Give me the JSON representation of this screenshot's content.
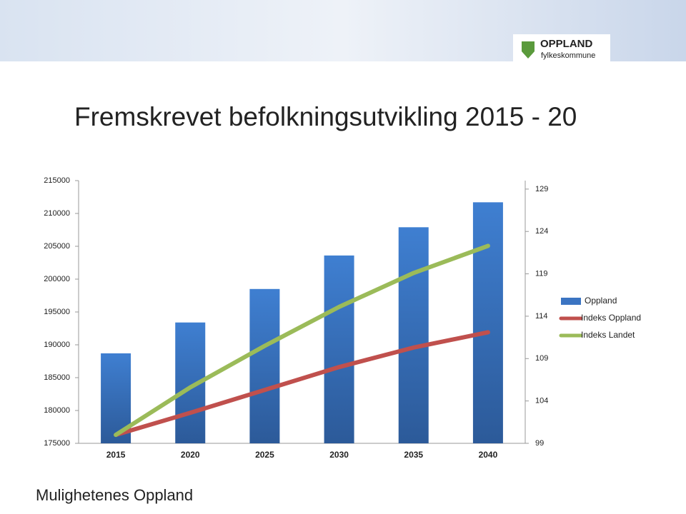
{
  "header": {
    "logo_title": "OPPLAND",
    "logo_subtitle": "fylkeskommune"
  },
  "footer": "Mulighetenes Oppland",
  "chart_data": {
    "type": "bar_line",
    "title": "Fremskrevet befolkningsutvikling 2015 - 20",
    "categories": [
      "2015",
      "2020",
      "2025",
      "2030",
      "2035",
      "2040"
    ],
    "series": [
      {
        "name": "Oppland",
        "color": "#3b74c2",
        "type": "bar",
        "axis": "y",
        "values": [
          188700,
          193400,
          198500,
          203600,
          207900,
          211700
        ]
      },
      {
        "name": "Indeks Oppland",
        "color": "#c0504d",
        "type": "line",
        "axis": "y2",
        "values": [
          100,
          102.6,
          105.3,
          108.0,
          110.3,
          112.1
        ]
      },
      {
        "name": "Indeks Landet",
        "color": "#9bbb59",
        "type": "line",
        "axis": "y2",
        "values": [
          100,
          105.6,
          110.5,
          115.1,
          119.1,
          122.3
        ]
      }
    ],
    "ylim": [
      175000,
      215000
    ],
    "yticks": [
      175000,
      180000,
      185000,
      190000,
      195000,
      200000,
      205000,
      210000,
      215000
    ],
    "y2lim": [
      99,
      130
    ],
    "y2ticks": [
      99,
      104,
      109,
      114,
      119,
      124,
      129
    ],
    "legend": "right",
    "grid": false
  }
}
